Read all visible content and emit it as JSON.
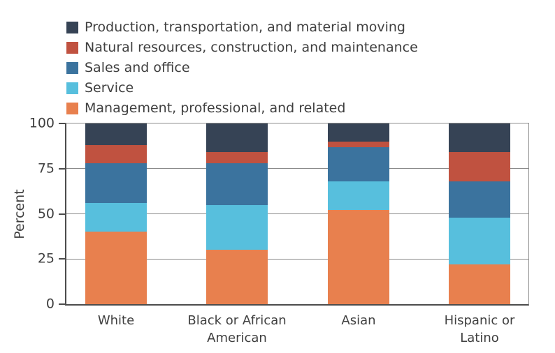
{
  "colors": {
    "background": "#ffffff",
    "text": "#3f3f3f",
    "axis_line": "#4c4c4c",
    "grid_line": "#8b8b8b"
  },
  "chart_data": {
    "type": "bar",
    "subtype": "stacked-vertical",
    "title": "",
    "xlabel": "",
    "ylabel": "Percent",
    "ylim": [
      0,
      100
    ],
    "yticks": [
      0,
      25,
      50,
      75,
      100
    ],
    "grid": "horizontal",
    "legend_position": "top-left",
    "legend_order": "reverse-of-stack (top segment listed first)",
    "categories": [
      "White",
      "Black or African American",
      "Asian",
      "Hispanic or Latino"
    ],
    "category_labels_wrapped": [
      "White",
      "Black or African\nAmerican",
      "Asian",
      "Hispanic or\nLatino"
    ],
    "series": [
      {
        "name": "Management, professional, and related",
        "color": "#e8804e",
        "values": [
          40,
          30,
          52,
          22
        ]
      },
      {
        "name": "Service",
        "color": "#57bfdd",
        "values": [
          16,
          25,
          16,
          26
        ]
      },
      {
        "name": "Sales and office",
        "color": "#3b739e",
        "values": [
          22,
          23,
          19,
          20
        ]
      },
      {
        "name": "Natural resources, construction, and maintenance",
        "color": "#c05240",
        "values": [
          10,
          6,
          3,
          16
        ]
      },
      {
        "name": "Production, transportation, and material moving",
        "color": "#364355",
        "values": [
          12,
          16,
          10,
          16
        ]
      }
    ]
  }
}
